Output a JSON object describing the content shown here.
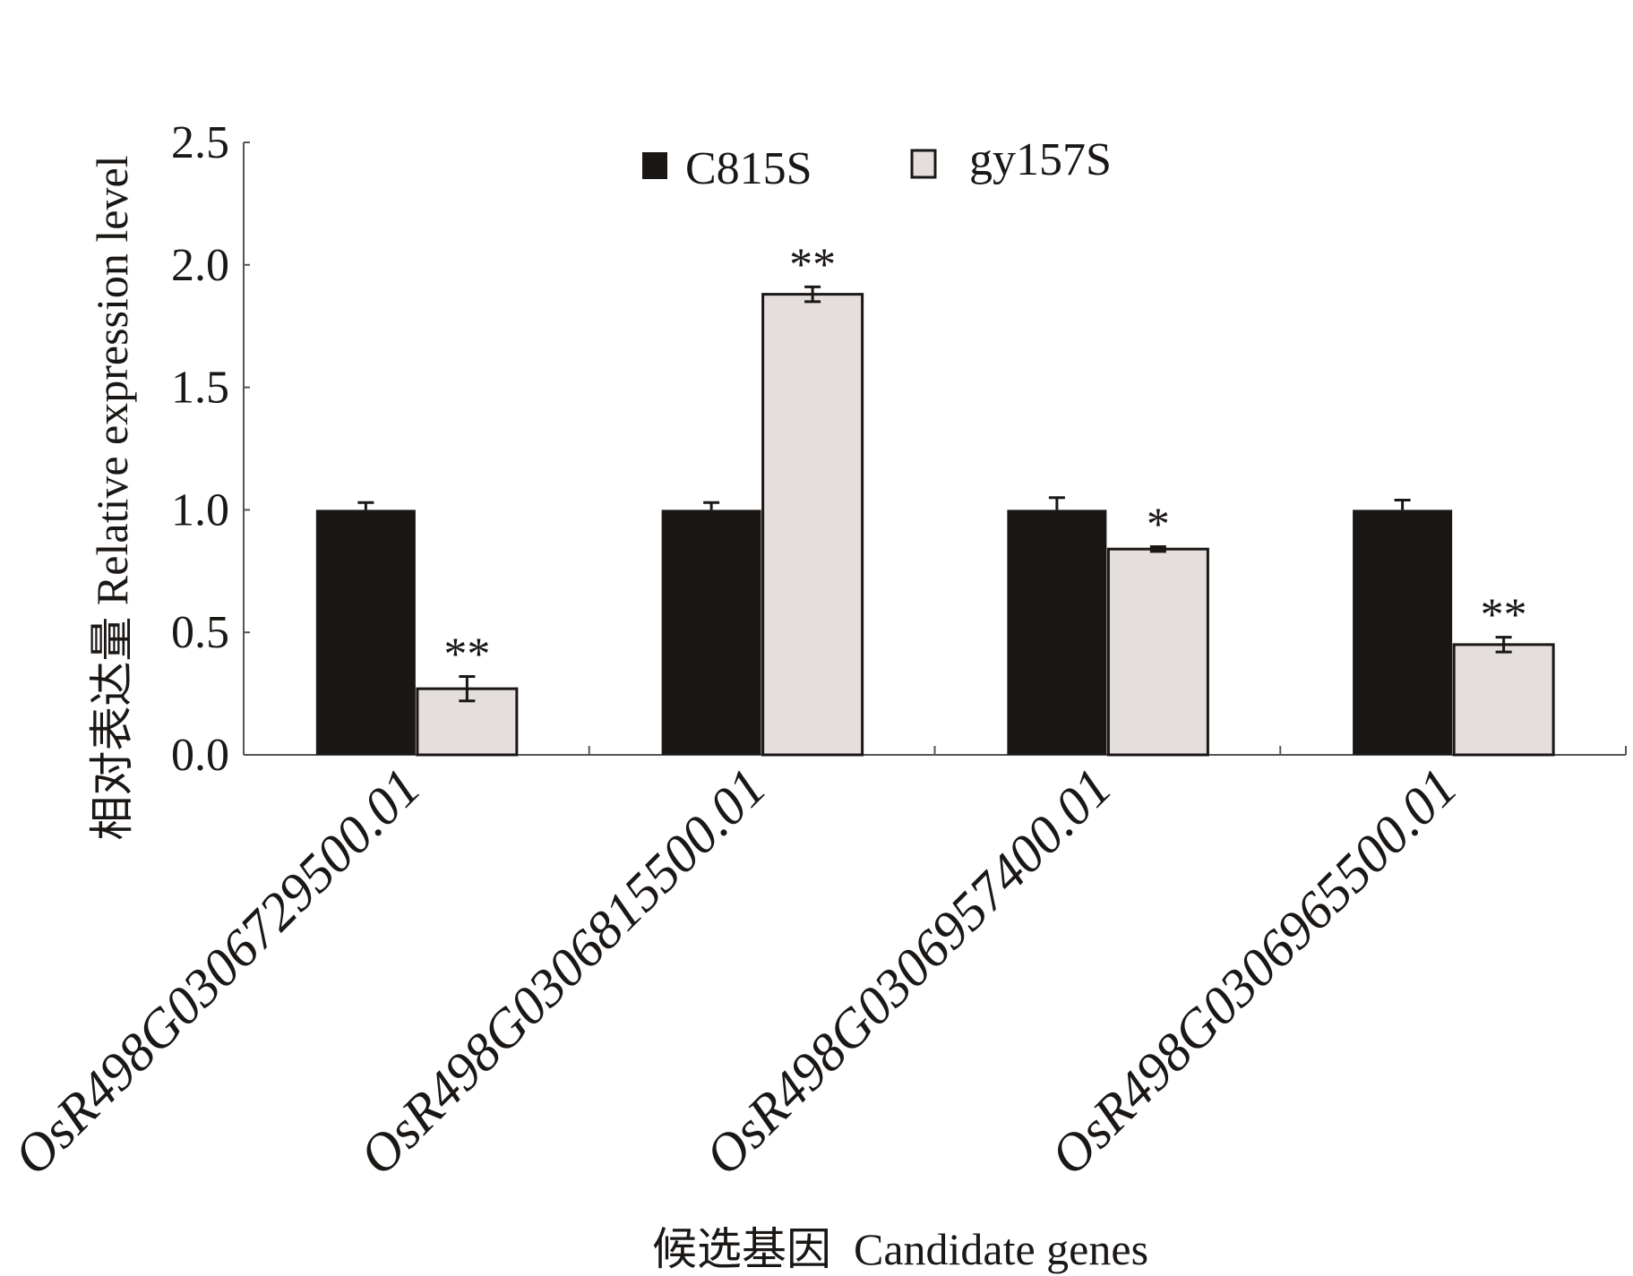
{
  "chart_data": {
    "type": "bar",
    "title": "",
    "ylabel": "相对表达量  Relative expression level",
    "xlabel": "候选基因  Candidate genes",
    "ylim": [
      0,
      2.5
    ],
    "yticks": [
      "0.0",
      "0.5",
      "1.0",
      "1.5",
      "2.0",
      "2.5"
    ],
    "grid": false,
    "legend_position": "top-center",
    "categories": [
      "OsR498G0306729500.01",
      "OsR498G0306815500.01",
      "OsR498G0306957400.01",
      "OsR498G0306965500.01"
    ],
    "series": [
      {
        "name": "C815S",
        "color": "#1a1715",
        "values": [
          1.0,
          1.0,
          1.0,
          1.0
        ],
        "errors": [
          0.03,
          0.03,
          0.05,
          0.04
        ],
        "significance": [
          "",
          "",
          "",
          ""
        ]
      },
      {
        "name": "gy157S",
        "color": "#e4dedd",
        "values": [
          0.27,
          1.88,
          0.84,
          0.45
        ],
        "errors": [
          0.05,
          0.03,
          0.01,
          0.03
        ],
        "significance": [
          "**",
          "**",
          "*",
          "**"
        ]
      }
    ]
  }
}
